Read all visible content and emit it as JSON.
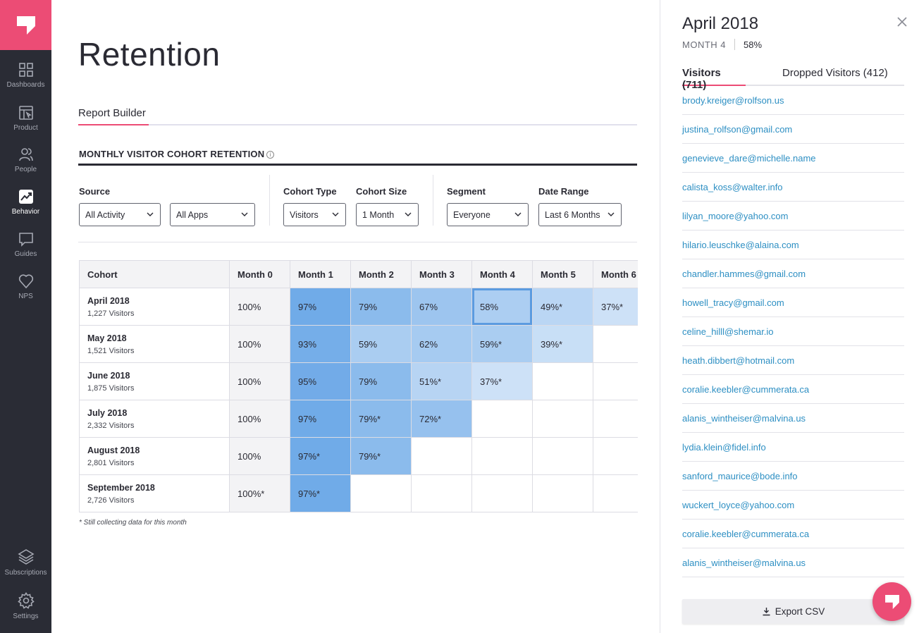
{
  "colors": {
    "brand": "#ec4c75",
    "sidebar_bg": "#2a2c35",
    "link": "#2d8fc3"
  },
  "sidebar": {
    "items": [
      {
        "label": "Dashboards",
        "icon": "grid-icon"
      },
      {
        "label": "Product",
        "icon": "product-icon"
      },
      {
        "label": "People",
        "icon": "people-icon"
      },
      {
        "label": "Behavior",
        "icon": "trend-icon",
        "active": true
      },
      {
        "label": "Guides",
        "icon": "chat-icon"
      },
      {
        "label": "NPS",
        "icon": "heart-icon"
      },
      {
        "label": "Subscriptions",
        "icon": "layers-icon"
      },
      {
        "label": "Settings",
        "icon": "gear-icon"
      }
    ]
  },
  "main": {
    "title": "Retention",
    "tab": "Report Builder",
    "section_title": "MONTHLY VISITOR COHORT RETENTION",
    "filters": {
      "source_label": "Source",
      "source_value": "All Activity",
      "apps_value": "All Apps",
      "cohort_type_label": "Cohort Type",
      "cohort_type_value": "Visitors",
      "cohort_size_label": "Cohort Size",
      "cohort_size_value": "1 Month",
      "segment_label": "Segment",
      "segment_value": "Everyone",
      "date_range_label": "Date Range",
      "date_range_value": "Last 6 Months"
    },
    "table": {
      "headers": [
        "Cohort",
        "Month 0",
        "Month 1",
        "Month 2",
        "Month 3",
        "Month 4",
        "Month 5",
        "Month 6"
      ],
      "rows": [
        {
          "name": "April 2018",
          "visitors": "1,227 Visitors",
          "cells": [
            "100%",
            "97%",
            "79%",
            "67%",
            "58%",
            "49%*",
            "37%*"
          ]
        },
        {
          "name": "May 2018",
          "visitors": "1,521 Visitors",
          "cells": [
            "100%",
            "93%",
            "59%",
            "62%",
            "59%*",
            "39%*",
            ""
          ]
        },
        {
          "name": "June 2018",
          "visitors": "1,875 Visitors",
          "cells": [
            "100%",
            "95%",
            "79%",
            "51%*",
            "37%*",
            "",
            ""
          ]
        },
        {
          "name": "July 2018",
          "visitors": "2,332 Visitors",
          "cells": [
            "100%",
            "97%",
            "79%*",
            "72%*",
            "",
            "",
            ""
          ]
        },
        {
          "name": "August 2018",
          "visitors": "2,801 Visitors",
          "cells": [
            "100%",
            "97%*",
            "79%*",
            "",
            "",
            "",
            ""
          ]
        },
        {
          "name": "September 2018",
          "visitors": "2,726 Visitors",
          "cells": [
            "100%*",
            "97%*",
            "",
            "",
            "",
            "",
            ""
          ]
        }
      ],
      "selected_cell": {
        "row": 0,
        "col": 4
      }
    },
    "footnote": "* Still collecting data for this month"
  },
  "panel": {
    "title": "April 2018",
    "month": "MONTH 4",
    "percent": "58%",
    "tab_visitors": "Visitors (711)",
    "tab_dropped": "Dropped Visitors (412)",
    "emails": [
      "brody.kreiger@rolfson.us",
      "justina_rolfson@gmail.com",
      "genevieve_dare@michelle.name",
      "calista_koss@walter.info",
      "lilyan_moore@yahoo.com",
      "hilario.leuschke@alaina.com",
      "chandler.hammes@gmail.com",
      "howell_tracy@gmail.com",
      "celine_hilll@shemar.io",
      "heath.dibbert@hotmail.com",
      "coralie.keebler@cummerata.ca",
      "alanis_wintheiser@malvina.us",
      "lydia.klein@fidel.info",
      "sanford_maurice@bode.info",
      "wuckert_loyce@yahoo.com",
      "coralie.keebler@cummerata.ca",
      "alanis_wintheiser@malvina.us"
    ],
    "export_label": "Export CSV"
  }
}
